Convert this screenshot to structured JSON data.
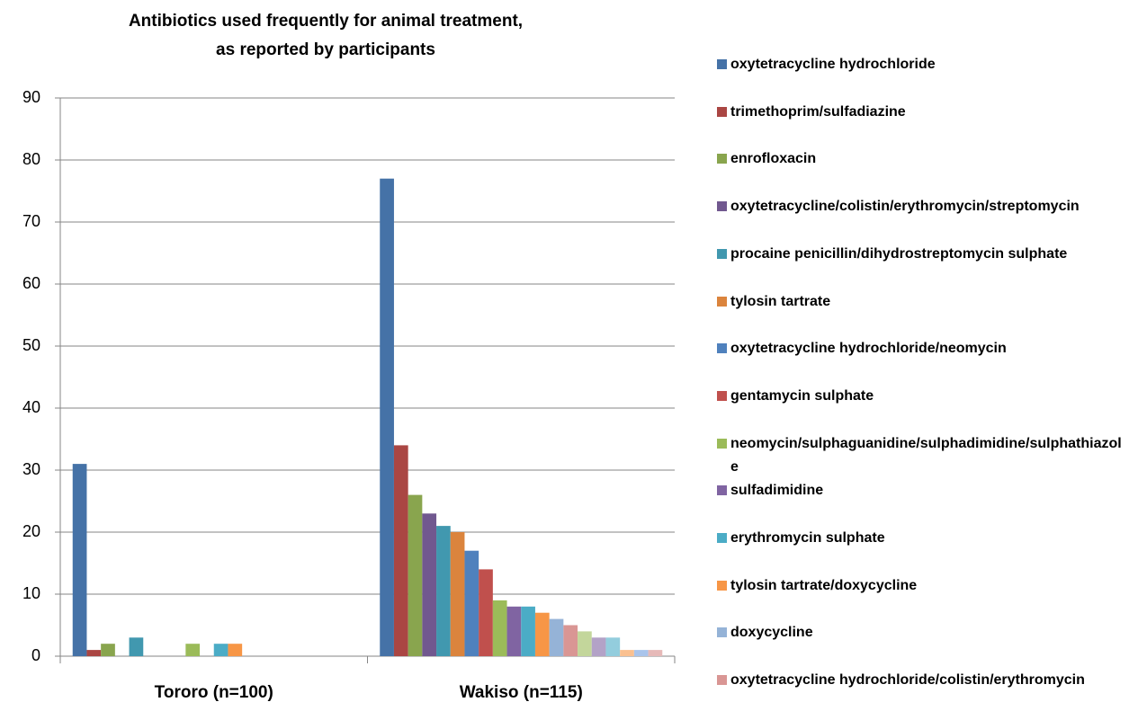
{
  "chart_data": {
    "type": "bar",
    "title": [
      "Antibiotics used frequently for animal treatment,",
      "as reported by participants"
    ],
    "categories": [
      "Tororo (n=100)",
      "Wakiso (n=115)"
    ],
    "ylim": [
      0,
      90
    ],
    "yticks": [
      0,
      10,
      20,
      30,
      40,
      50,
      60,
      70,
      80,
      90
    ],
    "grid": true,
    "series": [
      {
        "name": "oxytetracycline hydrochloride",
        "color": "#4572A7",
        "values": [
          31,
          77
        ]
      },
      {
        "name": "trimethoprim/sulfadiazine",
        "color": "#AA4643",
        "values": [
          1,
          34
        ]
      },
      {
        "name": "enrofloxacin",
        "color": "#89A54E",
        "values": [
          2,
          26
        ]
      },
      {
        "name": "oxytetracycline/colistin/erythromycin/streptomycin",
        "color": "#71588F",
        "values": [
          0,
          23
        ]
      },
      {
        "name": "procaine penicillin/dihydrostreptomycin sulphate",
        "color": "#4198AF",
        "values": [
          3,
          21
        ]
      },
      {
        "name": "tylosin tartrate",
        "color": "#DB843D",
        "values": [
          0,
          20
        ]
      },
      {
        "name": "oxytetracycline hydrochloride/neomycin",
        "color": "#4F81BD",
        "values": [
          0,
          17
        ]
      },
      {
        "name": "gentamycin sulphate",
        "color": "#C0504D",
        "values": [
          0,
          14
        ]
      },
      {
        "name": "neomycin/sulphaguanidine/sulphadimidine/sulphathiazole",
        "color": "#9BBB59",
        "values": [
          2,
          9
        ]
      },
      {
        "name": "sulfadimidine",
        "color": "#8064A2",
        "values": [
          0,
          8
        ]
      },
      {
        "name": "erythromycin sulphate",
        "color": "#4BACC6",
        "values": [
          2,
          8
        ]
      },
      {
        "name": "tylosin tartrate/doxycycline",
        "color": "#F79646",
        "values": [
          2,
          7
        ]
      },
      {
        "name": "doxycycline",
        "color": "#95B3D7",
        "values": [
          0,
          6
        ]
      },
      {
        "name": "oxytetracycline hydrochloride/colistin/erythromycin",
        "color": "#D99694",
        "values": [
          0,
          5
        ]
      },
      {
        "name": null,
        "color": "#C3D69B",
        "values": [
          0,
          4
        ]
      },
      {
        "name": null,
        "color": "#B3A2C7",
        "values": [
          0,
          3
        ]
      },
      {
        "name": null,
        "color": "#93CDDD",
        "values": [
          0,
          3
        ]
      },
      {
        "name": null,
        "color": "#FAC090",
        "values": [
          0,
          1
        ]
      },
      {
        "name": null,
        "color": "#A9C4EB",
        "values": [
          0,
          1
        ]
      },
      {
        "name": null,
        "color": "#E6B9B8",
        "values": [
          0,
          1
        ]
      }
    ]
  }
}
